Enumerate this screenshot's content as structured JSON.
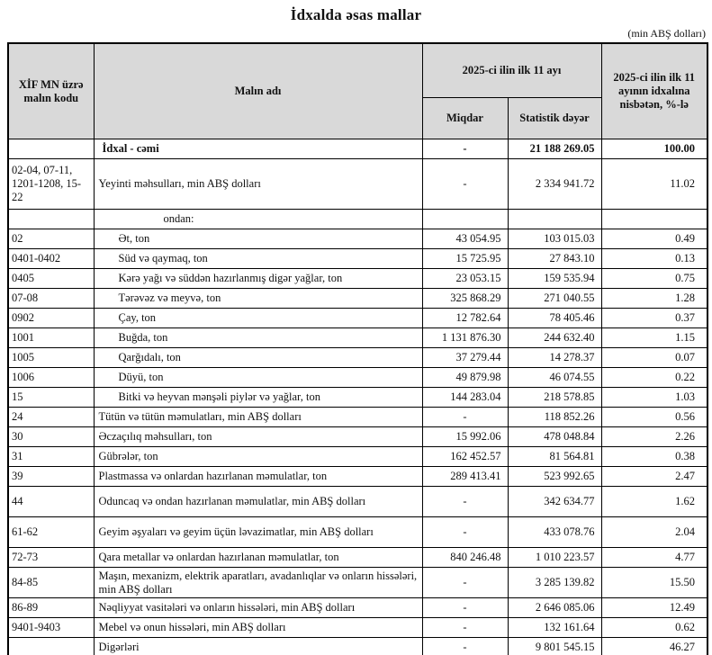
{
  "title": "İdxalda əsas mallar",
  "unit_note": "(min ABŞ dolları)",
  "table": {
    "headers": {
      "code": "XİF MN üzrə malın kodu",
      "name": "Malın adı",
      "period_group": "2025-ci ilin ilk 11 ayı",
      "quantity": "Miqdar",
      "stat_value": "Statistik dəyər",
      "share": "2025-ci ilin ilk 11 ayının idxalına nisbətən, %-lə"
    },
    "rows": [
      {
        "code": "",
        "name": "İdxal - cəmi",
        "qty": "-",
        "value": "21 188 269.05",
        "share": "100.00",
        "cls": "total"
      },
      {
        "code": "02-04, 07-11, 1201-1208, 15-22",
        "name": "Yeyinti məhsulları, min ABŞ dolları",
        "qty": "-",
        "value": "2 334 941.72",
        "share": "11.02",
        "cls": "h3"
      },
      {
        "code": "",
        "name": "ondan:",
        "qty": "",
        "value": "",
        "share": "",
        "cls": "ondan"
      },
      {
        "code": "02",
        "name": "Ət, ton",
        "qty": "43 054.95",
        "value": "103 015.03",
        "share": "0.49",
        "cls": "sub"
      },
      {
        "code": "0401-0402",
        "name": "Süd və qaymaq, ton",
        "qty": "15 725.95",
        "value": "27 843.10",
        "share": "0.13",
        "cls": "sub"
      },
      {
        "code": "0405",
        "name": "Kərə yağı və süddən hazırlanmış digər yağlar, ton",
        "qty": "23 053.15",
        "value": "159 535.94",
        "share": "0.75",
        "cls": "sub"
      },
      {
        "code": "07-08",
        "name": "Tərəvəz və meyvə, ton",
        "qty": "325 868.29",
        "value": "271 040.55",
        "share": "1.28",
        "cls": "sub"
      },
      {
        "code": "0902",
        "name": "Çay, ton",
        "qty": "12 782.64",
        "value": "78 405.46",
        "share": "0.37",
        "cls": "sub"
      },
      {
        "code": "1001",
        "name": "Buğda, ton",
        "qty": "1 131 876.30",
        "value": "244 632.40",
        "share": "1.15",
        "cls": "sub"
      },
      {
        "code": "1005",
        "name": "Qarğıdalı, ton",
        "qty": "37 279.44",
        "value": "14 278.37",
        "share": "0.07",
        "cls": "sub"
      },
      {
        "code": "1006",
        "name": "Düyü, ton",
        "qty": "49 879.98",
        "value": "46 074.55",
        "share": "0.22",
        "cls": "sub"
      },
      {
        "code": "15",
        "name": "Bitki və heyvan mənşəli piylər və yağlar, ton",
        "qty": "144 283.04",
        "value": "218 578.85",
        "share": "1.03",
        "cls": "sub"
      },
      {
        "code": "24",
        "name": "Tütün və tütün məmulatları, min ABŞ dolları",
        "qty": "-",
        "value": "118 852.26",
        "share": "0.56",
        "cls": ""
      },
      {
        "code": "30",
        "name": "Əczaçılıq məhsulları, ton",
        "qty": "15 992.06",
        "value": "478 048.84",
        "share": "2.26",
        "cls": ""
      },
      {
        "code": "31",
        "name": "Gübrələr, ton",
        "qty": "162 452.57",
        "value": "81 564.81",
        "share": "0.38",
        "cls": ""
      },
      {
        "code": "39",
        "name": "Plastmassa və onlardan hazırlanan məmulatlar, ton",
        "qty": "289 413.41",
        "value": "523 992.65",
        "share": "2.47",
        "cls": ""
      },
      {
        "code": "44",
        "name": "Oduncaq və ondan hazırlanan məmulatlar, min ABŞ dolları",
        "qty": "-",
        "value": "342 634.77",
        "share": "1.62",
        "cls": "hlg"
      },
      {
        "code": "61-62",
        "name": "Geyim əşyaları və geyim üçün ləvazimatlar, min ABŞ dolları",
        "qty": "-",
        "value": "433 078.76",
        "share": "2.04",
        "cls": "hlg"
      },
      {
        "code": "72-73",
        "name": "Qara metallar və onlardan hazırlanan məmulatlar, ton",
        "qty": "840 246.48",
        "value": "1 010 223.57",
        "share": "4.77",
        "cls": ""
      },
      {
        "code": "84-85",
        "name": "Maşın, mexanizm, elektrik aparatları, avadanlıqlar və onların hissələri, min ABŞ dolları",
        "qty": "-",
        "value": "3 285 139.82",
        "share": "15.50",
        "cls": "hlg"
      },
      {
        "code": "86-89",
        "name": "Nəqliyyat vasitələri və onların hissələri, min ABŞ dolları",
        "qty": "-",
        "value": "2 646 085.06",
        "share": "12.49",
        "cls": ""
      },
      {
        "code": "9401-9403",
        "name": "Mebel və onun hissələri, min ABŞ dolları",
        "qty": "-",
        "value": "132 161.64",
        "share": "0.62",
        "cls": ""
      },
      {
        "code": "",
        "name": "Digərləri",
        "qty": "-",
        "value": "9 801 545.15",
        "share": "46.27",
        "cls": ""
      }
    ]
  },
  "colors": {
    "header_bg": "#d9d9d9",
    "border": "#000000",
    "text": "#111111"
  }
}
